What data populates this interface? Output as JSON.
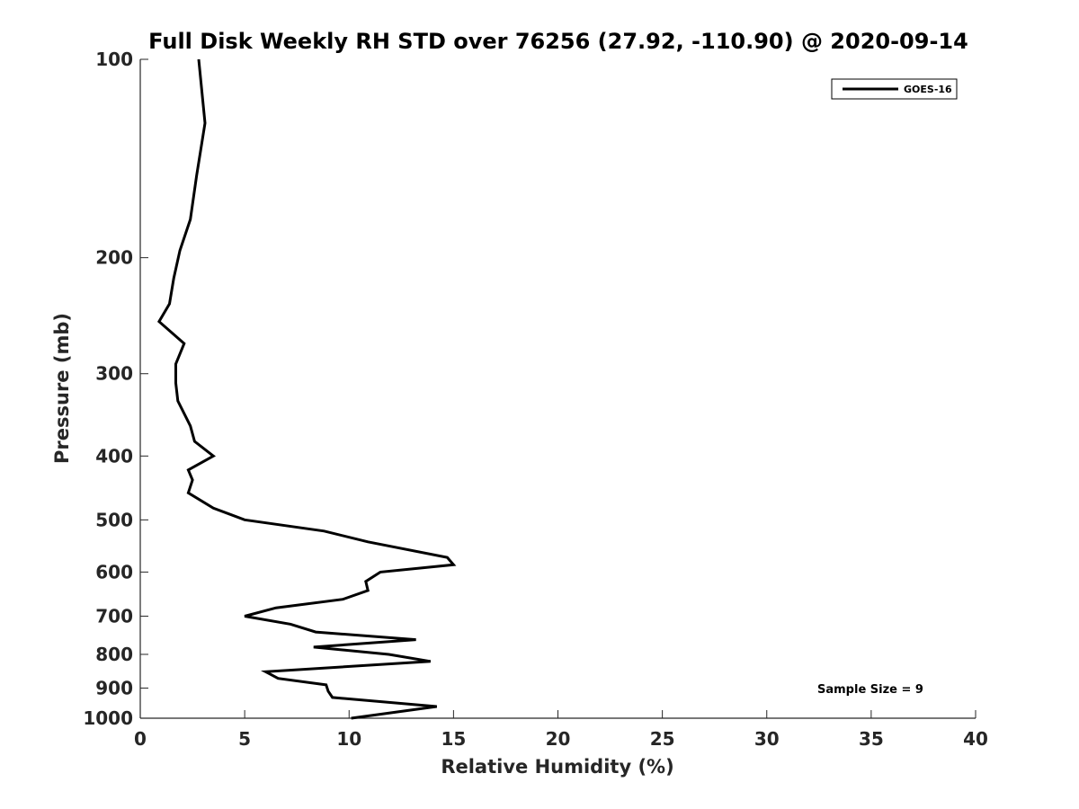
{
  "chart_data": {
    "type": "line",
    "title": "Full Disk Weekly RH STD over 76256 (27.92, -110.90) @ 2020-09-14",
    "xlabel": "Relative Humidity (%)",
    "ylabel": "Pressure (mb)",
    "xlim": [
      0,
      40
    ],
    "ylim": [
      100,
      1000
    ],
    "y_scale": "log",
    "y_reversed": true,
    "x_ticks": [
      0,
      5,
      10,
      15,
      20,
      25,
      30,
      35,
      40
    ],
    "y_ticks": [
      100,
      200,
      300,
      400,
      500,
      600,
      700,
      800,
      900,
      1000
    ],
    "grid": false,
    "legend_position": "top-right",
    "annotation": "Sample Size = 9",
    "series": [
      {
        "name": "GOES-16",
        "color": "#000000",
        "points": [
          [
            2.8,
            100
          ],
          [
            3.1,
            125
          ],
          [
            2.7,
            150
          ],
          [
            2.4,
            175
          ],
          [
            1.9,
            195
          ],
          [
            1.6,
            215
          ],
          [
            1.4,
            235
          ],
          [
            0.9,
            250
          ],
          [
            2.1,
            270
          ],
          [
            1.7,
            290
          ],
          [
            1.7,
            310
          ],
          [
            1.8,
            330
          ],
          [
            2.4,
            360
          ],
          [
            2.6,
            380
          ],
          [
            3.5,
            400
          ],
          [
            2.3,
            420
          ],
          [
            2.5,
            435
          ],
          [
            2.3,
            455
          ],
          [
            3.5,
            480
          ],
          [
            5.0,
            500
          ],
          [
            8.8,
            520
          ],
          [
            10.9,
            540
          ],
          [
            14.7,
            570
          ],
          [
            15.0,
            585
          ],
          [
            11.5,
            600
          ],
          [
            10.8,
            620
          ],
          [
            10.9,
            640
          ],
          [
            9.7,
            660
          ],
          [
            6.5,
            680
          ],
          [
            5.0,
            700
          ],
          [
            7.2,
            720
          ],
          [
            8.4,
            740
          ],
          [
            13.2,
            760
          ],
          [
            8.3,
            780
          ],
          [
            11.9,
            800
          ],
          [
            13.9,
            820
          ],
          [
            6.0,
            850
          ],
          [
            6.6,
            870
          ],
          [
            8.9,
            890
          ],
          [
            9.0,
            910
          ],
          [
            9.2,
            930
          ],
          [
            14.2,
            960
          ],
          [
            10.1,
            1000
          ]
        ]
      }
    ]
  }
}
